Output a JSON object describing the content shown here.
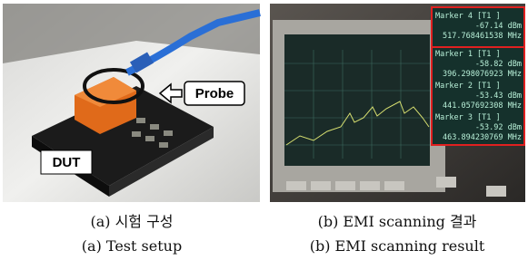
{
  "figures": [
    {
      "photo": {
        "probe_label": "Probe",
        "dut_label": "DUT"
      },
      "caption_ko": "(a) 시험 구성",
      "caption_en": "(a) Test setup"
    },
    {
      "photo": {
        "markers": [
          {
            "name": "Marker 4 [T1 ]",
            "level": "-67.14 dBm",
            "frequency": "517.768461538 MHz"
          },
          {
            "name": "Marker 1 [T1 ]",
            "level": "-58.82 dBm",
            "frequency": "396.298076923 MHz"
          },
          {
            "name": "Marker 2 [T1 ]",
            "level": "-53.43 dBm",
            "frequency": "441.057692308 MHz"
          },
          {
            "name": "Marker 3 [T1 ]",
            "level": "-53.92 dBm",
            "frequency": "463.894230769 MHz"
          }
        ]
      },
      "caption_ko": "(b) EMI scanning 결과",
      "caption_en": "(b) EMI scanning result"
    }
  ]
}
